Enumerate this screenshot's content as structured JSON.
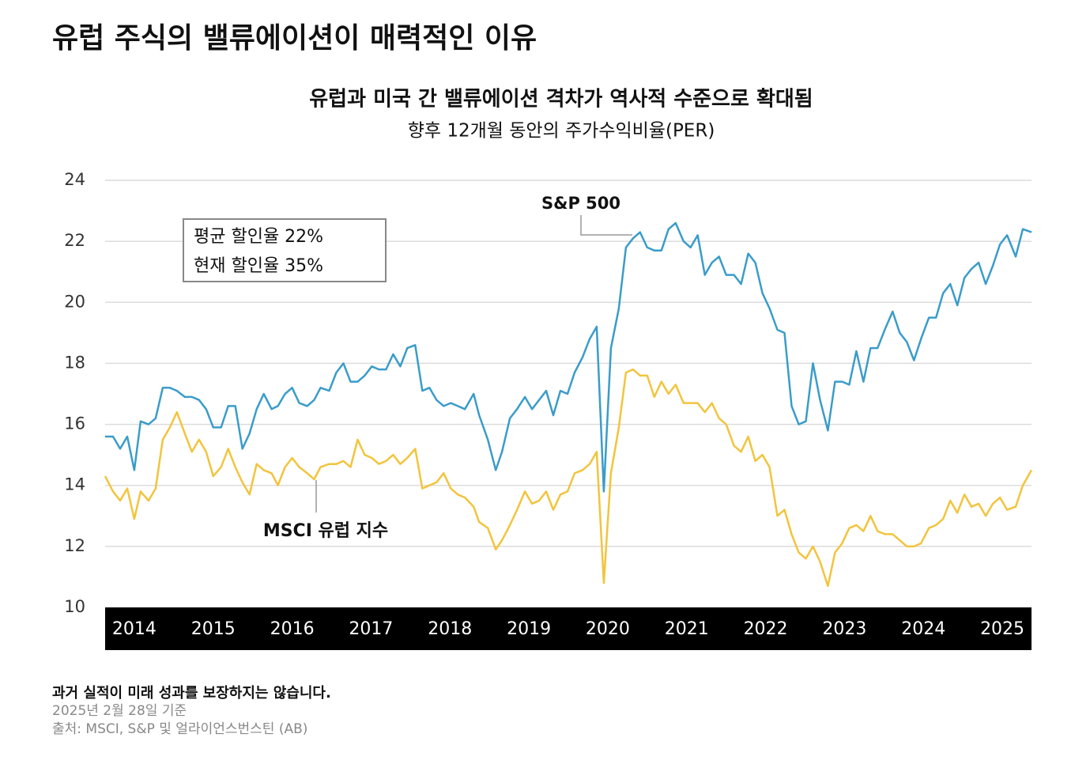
{
  "chart_data": {
    "type": "line",
    "title": "유럽 주식의 밸류에이션이 매력적인 이유",
    "subtitle": "유럽과 미국 간 밸류에이션 격차가 역사적 수준으로 확대됨",
    "y_label": "향후 12개월 동안의 주가수익비율(PER)",
    "box": [
      "평균 할인율 22%",
      "현재 할인율 35%"
    ],
    "annotations": [
      "S&P 500",
      "MSCI 유럽 지수"
    ],
    "notes": [
      "과거 실적이 미래 성과를 보장하지는 않습니다.",
      "2025년 2월 28일 기준",
      "출처: MSCI, S&P 및 얼라이언스번스틴 (AB)"
    ],
    "x": [
      2013.63,
      2013.73,
      2013.82,
      2013.91,
      2014.0,
      2014.08,
      2014.18,
      2014.27,
      2014.36,
      2014.45,
      2014.54,
      2014.64,
      2014.73,
      2014.82,
      2014.91,
      2015.0,
      2015.1,
      2015.19,
      2015.28,
      2015.37,
      2015.46,
      2015.55,
      2015.64,
      2015.74,
      2015.82,
      2015.91,
      2016.0,
      2016.09,
      2016.19,
      2016.28,
      2016.36,
      2016.47,
      2016.56,
      2016.65,
      2016.74,
      2016.83,
      2016.92,
      2017.01,
      2017.1,
      2017.19,
      2017.28,
      2017.37,
      2017.46,
      2017.56,
      2017.65,
      2017.74,
      2017.83,
      2017.92,
      2018.01,
      2018.1,
      2018.19,
      2018.3,
      2018.37,
      2018.48,
      2018.58,
      2018.66,
      2018.76,
      2018.85,
      2018.95,
      2019.04,
      2019.13,
      2019.22,
      2019.31,
      2019.4,
      2019.49,
      2019.58,
      2019.68,
      2019.77,
      2019.86,
      2019.95,
      2020.04,
      2020.14,
      2020.23,
      2020.32,
      2020.41,
      2020.5,
      2020.59,
      2020.68,
      2020.77,
      2020.86,
      2020.96,
      2021.05,
      2021.14,
      2021.23,
      2021.32,
      2021.41,
      2021.5,
      2021.6,
      2021.69,
      2021.78,
      2021.87,
      2021.96,
      2022.05,
      2022.15,
      2022.24,
      2022.33,
      2022.42,
      2022.51,
      2022.6,
      2022.69,
      2022.79,
      2022.88,
      2022.97,
      2023.06,
      2023.15,
      2023.24,
      2023.33,
      2023.42,
      2023.51,
      2023.61,
      2023.7,
      2023.79,
      2023.88,
      2023.97,
      2024.07,
      2024.16,
      2024.25,
      2024.34,
      2024.43,
      2024.52,
      2024.61,
      2024.7,
      2024.79,
      2024.88,
      2024.97,
      2025.06,
      2025.17,
      2025.26,
      2025.37
    ],
    "series": [
      {
        "name": "S&P 500",
        "color": "#3a9cc9",
        "values": [
          15.6,
          15.6,
          15.2,
          15.6,
          14.5,
          16.1,
          16.0,
          16.2,
          17.2,
          17.2,
          17.1,
          16.9,
          16.9,
          16.8,
          16.5,
          15.9,
          15.9,
          16.6,
          16.6,
          15.2,
          15.7,
          16.5,
          17.0,
          16.5,
          16.6,
          17.0,
          17.2,
          16.7,
          16.6,
          16.8,
          17.2,
          17.1,
          17.7,
          18.0,
          17.4,
          17.4,
          17.6,
          17.9,
          17.8,
          17.8,
          18.3,
          17.9,
          18.5,
          18.6,
          17.1,
          17.2,
          16.8,
          16.6,
          16.7,
          16.6,
          16.5,
          17.0,
          16.3,
          15.5,
          14.5,
          15.1,
          16.2,
          16.5,
          16.9,
          16.5,
          16.8,
          17.1,
          16.3,
          17.1,
          17.0,
          17.7,
          18.2,
          18.8,
          19.2,
          13.8,
          18.5,
          19.8,
          21.8,
          22.1,
          22.3,
          21.8,
          21.7,
          21.7,
          22.4,
          22.6,
          22.0,
          21.8,
          22.2,
          20.9,
          21.3,
          21.5,
          20.9,
          20.9,
          20.6,
          21.6,
          21.3,
          20.3,
          19.8,
          19.1,
          19.0,
          16.6,
          16.0,
          16.1,
          18.0,
          16.8,
          15.8,
          17.4,
          17.4,
          17.3,
          18.4,
          17.4,
          18.5,
          18.5,
          19.1,
          19.7,
          19.0,
          18.7,
          18.1,
          18.8,
          19.5,
          19.5,
          20.3,
          20.6,
          19.9,
          20.8,
          21.1,
          21.3,
          20.6,
          21.2,
          21.9,
          22.2,
          21.5,
          22.4,
          22.3
        ]
      },
      {
        "name": "MSCI 유럽 지수",
        "color": "#f2c43d",
        "values": [
          14.3,
          13.8,
          13.5,
          13.9,
          12.9,
          13.8,
          13.5,
          13.9,
          15.5,
          15.9,
          16.4,
          15.7,
          15.1,
          15.5,
          15.1,
          14.3,
          14.6,
          15.2,
          14.6,
          14.1,
          13.7,
          14.7,
          14.5,
          14.4,
          14.0,
          14.6,
          14.9,
          14.6,
          14.4,
          14.2,
          14.6,
          14.7,
          14.7,
          14.8,
          14.6,
          15.5,
          15.0,
          14.9,
          14.7,
          14.8,
          15.0,
          14.7,
          14.9,
          15.2,
          13.9,
          14.0,
          14.1,
          14.4,
          13.9,
          13.7,
          13.6,
          13.3,
          12.8,
          12.6,
          11.9,
          12.2,
          12.7,
          13.2,
          13.8,
          13.4,
          13.5,
          13.8,
          13.2,
          13.7,
          13.8,
          14.4,
          14.5,
          14.7,
          15.1,
          10.8,
          14.4,
          15.9,
          17.7,
          17.8,
          17.6,
          17.6,
          16.9,
          17.4,
          17.0,
          17.3,
          16.7,
          16.7,
          16.7,
          16.4,
          16.7,
          16.2,
          16.0,
          15.3,
          15.1,
          15.6,
          14.8,
          15.0,
          14.6,
          13.0,
          13.2,
          12.4,
          11.8,
          11.6,
          12.0,
          11.5,
          10.7,
          11.8,
          12.1,
          12.6,
          12.7,
          12.5,
          13.0,
          12.5,
          12.4,
          12.4,
          12.2,
          12.0,
          12.0,
          12.1,
          12.6,
          12.7,
          12.9,
          13.5,
          13.1,
          13.7,
          13.3,
          13.4,
          13.0,
          13.4,
          13.6,
          13.2,
          13.3,
          14.0,
          14.5
        ]
      }
    ],
    "xlim": [
      2013.63,
      2025.37
    ],
    "xticks": [
      2014,
      2015,
      2016,
      2017,
      2018,
      2019,
      2020,
      2021,
      2022,
      2023,
      2024,
      2025
    ],
    "ylim": [
      10,
      24
    ],
    "yticks": [
      10,
      12,
      14,
      16,
      18,
      20,
      22,
      24
    ],
    "grid": true
  }
}
